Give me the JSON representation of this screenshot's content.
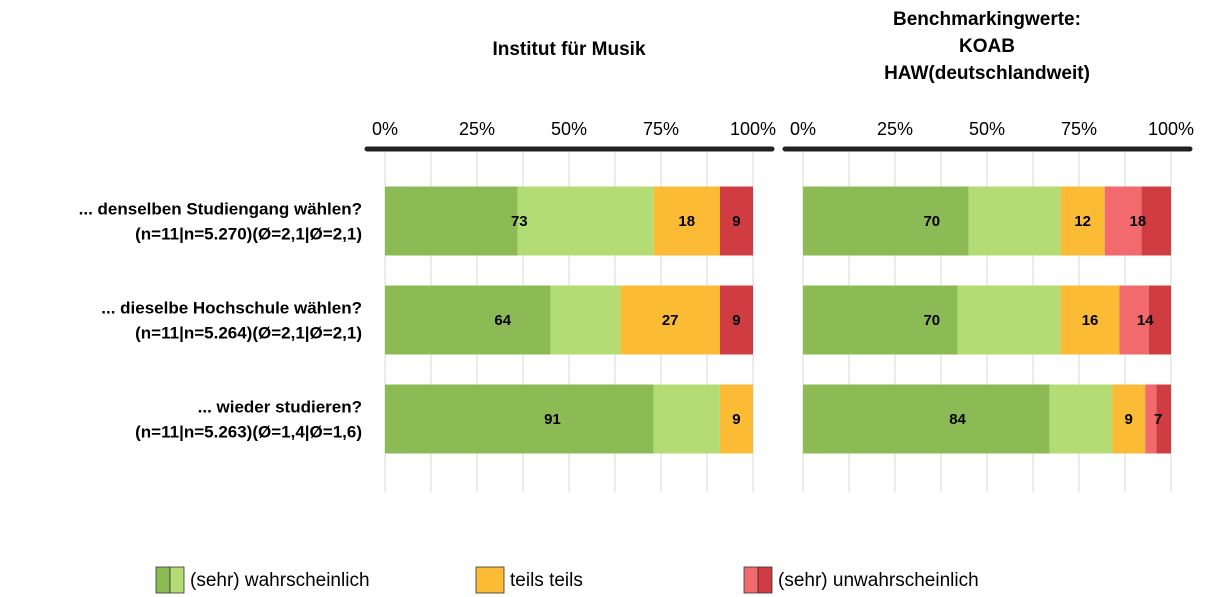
{
  "chart_data": [
    {
      "type": "stacked-barh",
      "title": [
        "Institut für Musik"
      ],
      "categories": [
        [
          "... denselben Studiengang wählen?",
          "(n=11|n=5.270)(Ø=2,1|Ø=2,1)"
        ],
        [
          "... dieselbe Hochschule wählen?",
          "(n=11|n=5.264)(Ø=2,1|Ø=2,1)"
        ],
        [
          "... wieder studieren?",
          "(n=11|n=5.263)(Ø=1,4|Ø=1,6)"
        ]
      ],
      "xlim": [
        0,
        100
      ],
      "xticks": [
        {
          "value": 0,
          "label": "0%"
        },
        {
          "value": 25,
          "label": "25%"
        },
        {
          "value": 50,
          "label": "50%"
        },
        {
          "value": 75,
          "label": "75%"
        },
        {
          "value": 100,
          "label": "100%"
        }
      ],
      "minor_grid": [
        12.5,
        37.5,
        62.5,
        87.5
      ],
      "series": [
        {
          "color": "#8cbb55",
          "values": [
            36,
            45,
            73
          ]
        },
        {
          "color": "#b4dc74",
          "values": [
            37,
            19,
            18
          ]
        },
        {
          "color": "#fbbb34",
          "values": [
            18,
            27,
            9
          ]
        },
        {
          "color": "#f26a6d",
          "values": [
            0,
            0,
            0
          ]
        },
        {
          "color": "#cf3d43",
          "values": [
            9,
            9,
            0
          ]
        }
      ],
      "totals": [
        {
          "values": [
            73,
            64,
            91
          ]
        },
        {
          "values": [
            18,
            27,
            9
          ]
        },
        {
          "values": [
            9,
            9,
            null
          ]
        }
      ]
    },
    {
      "type": "stacked-barh",
      "title": [
        "Benchmarkingwerte:",
        "KOAB",
        "HAW(deutschlandweit)"
      ],
      "xlim": [
        0,
        100
      ],
      "xticks": [
        {
          "value": 0,
          "label": "0%"
        },
        {
          "value": 25,
          "label": "25%"
        },
        {
          "value": 50,
          "label": "50%"
        },
        {
          "value": 75,
          "label": "75%"
        },
        {
          "value": 100,
          "label": "100%"
        }
      ],
      "minor_grid": [
        12.5,
        37.5,
        62.5,
        87.5
      ],
      "series": [
        {
          "color": "#8cbb55",
          "values": [
            45,
            42,
            67
          ]
        },
        {
          "color": "#b4dc74",
          "values": [
            25,
            28,
            17
          ]
        },
        {
          "color": "#fbbb34",
          "values": [
            12,
            16,
            9
          ]
        },
        {
          "color": "#f26a6d",
          "values": [
            10,
            8,
            3
          ]
        },
        {
          "color": "#cf3d43",
          "values": [
            8,
            6,
            4
          ]
        }
      ],
      "totals": [
        {
          "values": [
            70,
            70,
            84
          ]
        },
        {
          "values": [
            12,
            16,
            9
          ]
        },
        {
          "values": [
            18,
            14,
            7
          ]
        }
      ]
    }
  ],
  "legend": [
    {
      "name": "(sehr) wahrscheinlich",
      "colors": [
        "#8cbb55",
        "#b4dc74"
      ]
    },
    {
      "name": "teils teils",
      "colors": [
        "#fbbb34"
      ]
    },
    {
      "name": "(sehr) unwahrscheinlich",
      "colors": [
        "#f26a6d",
        "#cf3d43"
      ]
    }
  ]
}
